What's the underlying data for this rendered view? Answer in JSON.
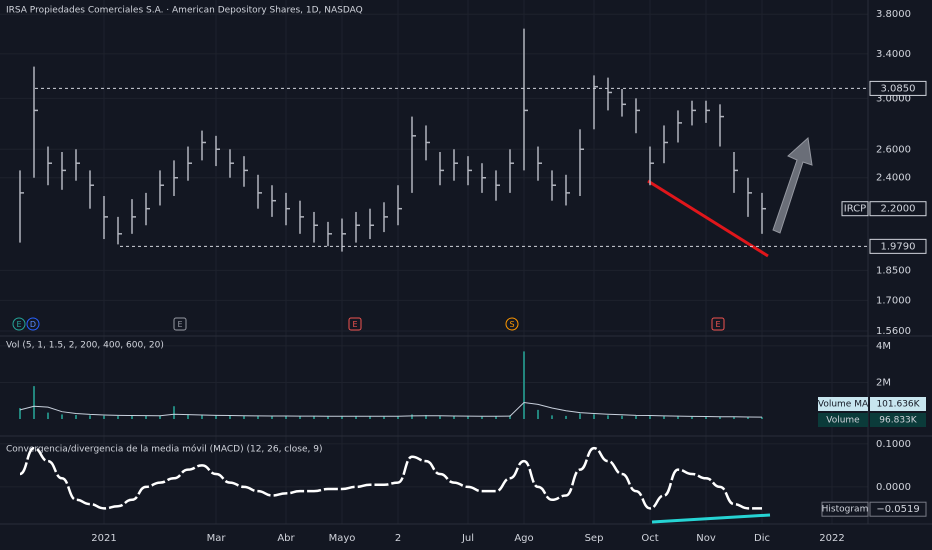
{
  "chart_data": [
    {
      "type": "ohlc",
      "title": "IRSA Propiedades Comerciales S.A. · American Depository Shares, 1D, NASDAQ",
      "categories": [
        null,
        null,
        null,
        null,
        null,
        null,
        "2021",
        null,
        null,
        null,
        null,
        null,
        null,
        null,
        "Mar",
        null,
        null,
        null,
        null,
        "Abr",
        null,
        null,
        null,
        "Mayo",
        null,
        null,
        null,
        "2",
        null,
        null,
        null,
        null,
        "Jul",
        null,
        null,
        null,
        "Ago",
        null,
        null,
        null,
        null,
        "Sep",
        null,
        null,
        null,
        "Oct",
        null,
        null,
        null,
        "Nov",
        null,
        null,
        null,
        "Dic",
        null,
        null,
        null,
        null,
        "2022"
      ],
      "high": [
        2.45,
        3.28,
        2.62,
        2.58,
        2.6,
        2.45,
        2.28,
        2.15,
        2.26,
        2.3,
        2.45,
        2.52,
        2.62,
        2.74,
        2.7,
        2.6,
        2.55,
        2.42,
        2.35,
        2.3,
        2.25,
        2.18,
        2.12,
        2.14,
        2.18,
        2.2,
        2.24,
        2.35,
        2.85,
        2.78,
        2.58,
        2.6,
        2.55,
        2.5,
        2.45,
        2.6,
        3.65,
        2.62,
        2.45,
        2.42,
        2.75,
        3.2,
        3.18,
        3.08,
        3.0,
        2.62,
        2.78,
        2.9,
        2.98,
        2.98,
        2.95,
        2.58,
        2.4,
        2.3,
        null,
        null,
        null,
        null,
        null
      ],
      "low": [
        2.0,
        2.4,
        2.35,
        2.32,
        2.38,
        2.2,
        2.02,
        1.99,
        2.05,
        2.1,
        2.22,
        2.28,
        2.38,
        2.52,
        2.48,
        2.4,
        2.34,
        2.2,
        2.15,
        2.1,
        2.05,
        2.0,
        1.98,
        1.95,
        2.0,
        2.02,
        2.06,
        2.1,
        2.3,
        2.52,
        2.35,
        2.38,
        2.35,
        2.3,
        2.25,
        2.3,
        2.45,
        2.38,
        2.25,
        2.22,
        2.28,
        2.75,
        2.9,
        2.85,
        2.72,
        2.35,
        2.5,
        2.65,
        2.78,
        2.8,
        2.62,
        2.3,
        2.15,
        2.05,
        null,
        null,
        null,
        null,
        null
      ],
      "close": [
        2.3,
        2.9,
        2.5,
        2.45,
        2.5,
        2.35,
        2.15,
        2.05,
        2.15,
        2.2,
        2.35,
        2.4,
        2.5,
        2.65,
        2.6,
        2.5,
        2.45,
        2.3,
        2.25,
        2.2,
        2.15,
        2.1,
        2.05,
        2.05,
        2.1,
        2.1,
        2.15,
        2.2,
        2.7,
        2.65,
        2.45,
        2.5,
        2.45,
        2.4,
        2.35,
        2.5,
        2.9,
        2.5,
        2.35,
        2.3,
        2.6,
        3.1,
        3.05,
        2.95,
        2.9,
        2.5,
        2.65,
        2.8,
        2.9,
        2.9,
        2.85,
        2.45,
        2.3,
        2.2,
        null,
        null,
        null,
        null,
        null
      ],
      "color": "#b2b5be",
      "log_scale": true,
      "ylim": [
        1.56,
        3.9
      ],
      "yticks": [
        {
          "value": 3.8,
          "label": "3.8000"
        },
        {
          "value": 3.4,
          "label": "3.4000"
        },
        {
          "value": 3.0,
          "label": "3.0000"
        },
        {
          "value": 2.6,
          "label": "2.6000"
        },
        {
          "value": 2.4,
          "label": "2.4000"
        },
        {
          "value": 1.85,
          "label": "1.8500"
        },
        {
          "value": 1.7,
          "label": "1.7000"
        },
        {
          "value": 1.56,
          "label": "1.5600"
        }
      ],
      "levels": [
        {
          "value": 3.085,
          "label": "3.0850"
        },
        {
          "value": 1.979,
          "label": "1.9790"
        }
      ],
      "last_price": {
        "name": "IRCP",
        "value": 2.2,
        "label": "2.2000"
      },
      "events": [
        "E",
        "D",
        "E",
        "E",
        "S",
        "E"
      ]
    },
    {
      "type": "bar",
      "title": "Vol (5, 1, 1.5, 2, 200, 400, 600, 20)",
      "series": [
        {
          "name": "Volume",
          "color": "#22857d",
          "values": [
            600000,
            1800000,
            350000,
            250000,
            220000,
            200000,
            180000,
            160000,
            200000,
            180000,
            170000,
            700000,
            260000,
            240000,
            200000,
            180000,
            170000,
            160000,
            150000,
            170000,
            160000,
            150000,
            140000,
            150000,
            160000,
            140000,
            130000,
            150000,
            250000,
            220000,
            160000,
            150000,
            140000,
            130000,
            150000,
            200000,
            3700000,
            500000,
            200000,
            170000,
            300000,
            260000,
            200000,
            180000,
            170000,
            220000,
            150000,
            140000,
            130000,
            120000,
            110000,
            120000,
            110000,
            96833,
            null,
            null,
            null,
            null,
            null
          ],
          "last_value_label": "96.833K"
        },
        {
          "name": "Volume MA",
          "color": "#c8d0dc",
          "values": [
            500000,
            700000,
            650000,
            400000,
            300000,
            250000,
            220000,
            200000,
            190000,
            185000,
            180000,
            260000,
            240000,
            220000,
            200000,
            190000,
            180000,
            170000,
            165000,
            165000,
            160000,
            155000,
            150000,
            150000,
            152000,
            150000,
            148000,
            150000,
            170000,
            180000,
            175000,
            165000,
            155000,
            150000,
            150000,
            160000,
            900000,
            800000,
            600000,
            450000,
            350000,
            300000,
            260000,
            230000,
            200000,
            190000,
            170000,
            155000,
            145000,
            135000,
            125000,
            120000,
            110000,
            101636,
            null,
            null,
            null,
            null,
            null
          ],
          "last_value_label": "101.636K"
        }
      ],
      "ylim": [
        0,
        4270000
      ],
      "yticks": [
        {
          "value": 4000000,
          "label": "4M"
        },
        {
          "value": 2000000,
          "label": "2M"
        }
      ]
    },
    {
      "type": "line",
      "title": "Convergencia/divergencia de la media móvil (MACD) (12, 26, close, 9)",
      "series": [
        {
          "name": "MACD",
          "color": "#ffffff",
          "values": [
            0.03,
            0.09,
            0.06,
            0.02,
            -0.03,
            -0.04,
            -0.05,
            -0.045,
            -0.03,
            0.0,
            0.01,
            0.02,
            0.04,
            0.05,
            0.03,
            0.01,
            0.0,
            -0.01,
            -0.02,
            -0.015,
            -0.01,
            -0.01,
            -0.005,
            -0.005,
            0.0,
            0.005,
            0.005,
            0.01,
            0.07,
            0.06,
            0.03,
            0.01,
            0.0,
            -0.01,
            -0.01,
            0.02,
            0.06,
            0.0,
            -0.03,
            -0.02,
            0.04,
            0.09,
            0.06,
            0.03,
            -0.01,
            -0.05,
            -0.02,
            0.04,
            0.03,
            0.02,
            0.0,
            -0.04,
            -0.05,
            -0.05,
            null,
            null,
            null,
            null,
            null
          ]
        }
      ],
      "histogram": {
        "name": "Histogram",
        "value": -0.0519,
        "label": "−0.0519"
      },
      "ylim": [
        -0.077,
        0.109
      ],
      "yticks": [
        {
          "value": 0.1,
          "label": "0.1000"
        },
        {
          "value": 0,
          "label": "0.0000"
        }
      ]
    }
  ]
}
